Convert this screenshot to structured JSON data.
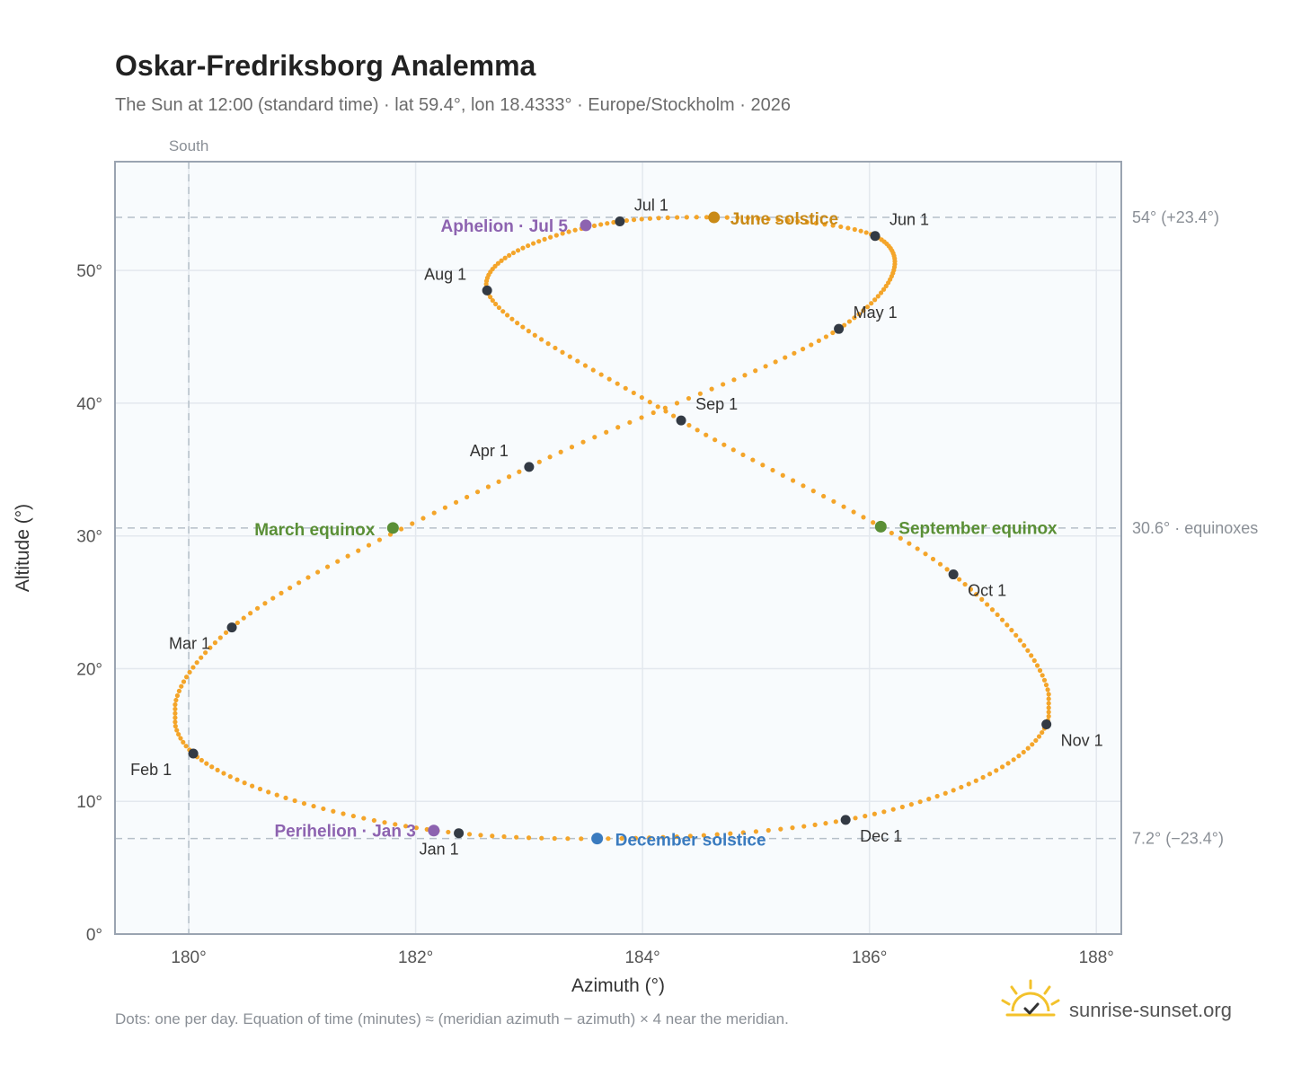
{
  "title": "Oskar-Fredriksborg Analemma",
  "subtitle": "The Sun at 12:00 (standard time) · lat 59.4°, lon 18.4333° · Europe/Stockholm · 2026",
  "footnote": "Dots: one per day. Equation of time (minutes) ≈ (meridian azimuth − azimuth) × 4 near the meridian.",
  "brand": {
    "name": "sunrise-sunset.org",
    "icon": "sun-check-icon"
  },
  "colors": {
    "path": "#f4a52a",
    "month": "#333a44",
    "june_solstice": "#c98a17",
    "december_solstice": "#3a7bbf",
    "equinox": "#5a8f36",
    "apsis": "#8d63b0",
    "plot_bg": "#f8fbfd",
    "grid": "#e3e8ee",
    "frame": "#9aa4b1",
    "refline": "#b6c0c9"
  },
  "chart_data": {
    "type": "scatter",
    "title": "Oskar-Fredriksborg Analemma",
    "xlabel": "Azimuth (°)",
    "ylabel": "Altitude (°)",
    "xlim": [
      179.35,
      188.22
    ],
    "ylim": [
      0,
      58.2
    ],
    "xticks": [
      {
        "value": 180,
        "label": "180°"
      },
      {
        "value": 182,
        "label": "182°"
      },
      {
        "value": 184,
        "label": "184°"
      },
      {
        "value": 186,
        "label": "186°"
      },
      {
        "value": 188,
        "label": "188°"
      }
    ],
    "yticks": [
      {
        "value": 0,
        "label": "0°"
      },
      {
        "value": 10,
        "label": "10°"
      },
      {
        "value": 20,
        "label": "20°"
      },
      {
        "value": 30,
        "label": "30°"
      },
      {
        "value": 40,
        "label": "40°"
      },
      {
        "value": 50,
        "label": "50°"
      }
    ],
    "grid": true,
    "meridian": {
      "azimuth": 180,
      "label": "South"
    },
    "reference_lines": [
      {
        "altitude": 54.0,
        "label": "54° (+23.4°)"
      },
      {
        "altitude": 30.6,
        "label": "30.6° · equinoxes"
      },
      {
        "altitude": 7.2,
        "label": "7.2° (−23.4°)"
      }
    ],
    "year": 2026,
    "points_per": "day",
    "month_markers": [
      {
        "label": "Jan 1",
        "azimuth": 182.38,
        "altitude": 7.6
      },
      {
        "label": "Feb 1",
        "azimuth": 180.04,
        "altitude": 13.6
      },
      {
        "label": "Mar 1",
        "azimuth": 180.38,
        "altitude": 23.1
      },
      {
        "label": "Apr 1",
        "azimuth": 183.0,
        "altitude": 35.2
      },
      {
        "label": "May 1",
        "azimuth": 185.73,
        "altitude": 45.6
      },
      {
        "label": "Jun 1",
        "azimuth": 186.05,
        "altitude": 52.6
      },
      {
        "label": "Jul 1",
        "azimuth": 183.8,
        "altitude": 53.7
      },
      {
        "label": "Aug 1",
        "azimuth": 182.63,
        "altitude": 48.5
      },
      {
        "label": "Sep 1",
        "azimuth": 184.34,
        "altitude": 38.7
      },
      {
        "label": "Oct 1",
        "azimuth": 186.74,
        "altitude": 27.1
      },
      {
        "label": "Nov 1",
        "azimuth": 187.56,
        "altitude": 15.8
      },
      {
        "label": "Dec 1",
        "azimuth": 185.79,
        "altitude": 8.6
      }
    ],
    "events": [
      {
        "label": "June solstice",
        "azimuth": 184.63,
        "altitude": 54.0,
        "color_key": "june_solstice"
      },
      {
        "label": "December solstice",
        "azimuth": 183.6,
        "altitude": 7.2,
        "color_key": "december_solstice"
      },
      {
        "label": "March equinox",
        "azimuth": 181.8,
        "altitude": 30.6,
        "color_key": "equinox"
      },
      {
        "label": "September equinox",
        "azimuth": 186.1,
        "altitude": 30.7,
        "color_key": "equinox"
      },
      {
        "label": "Aphelion · Jul 5",
        "azimuth": 183.5,
        "altitude": 53.4,
        "color_key": "apsis"
      },
      {
        "label": "Perihelion · Jan 3",
        "azimuth": 182.16,
        "altitude": 7.8,
        "color_key": "apsis"
      }
    ]
  }
}
